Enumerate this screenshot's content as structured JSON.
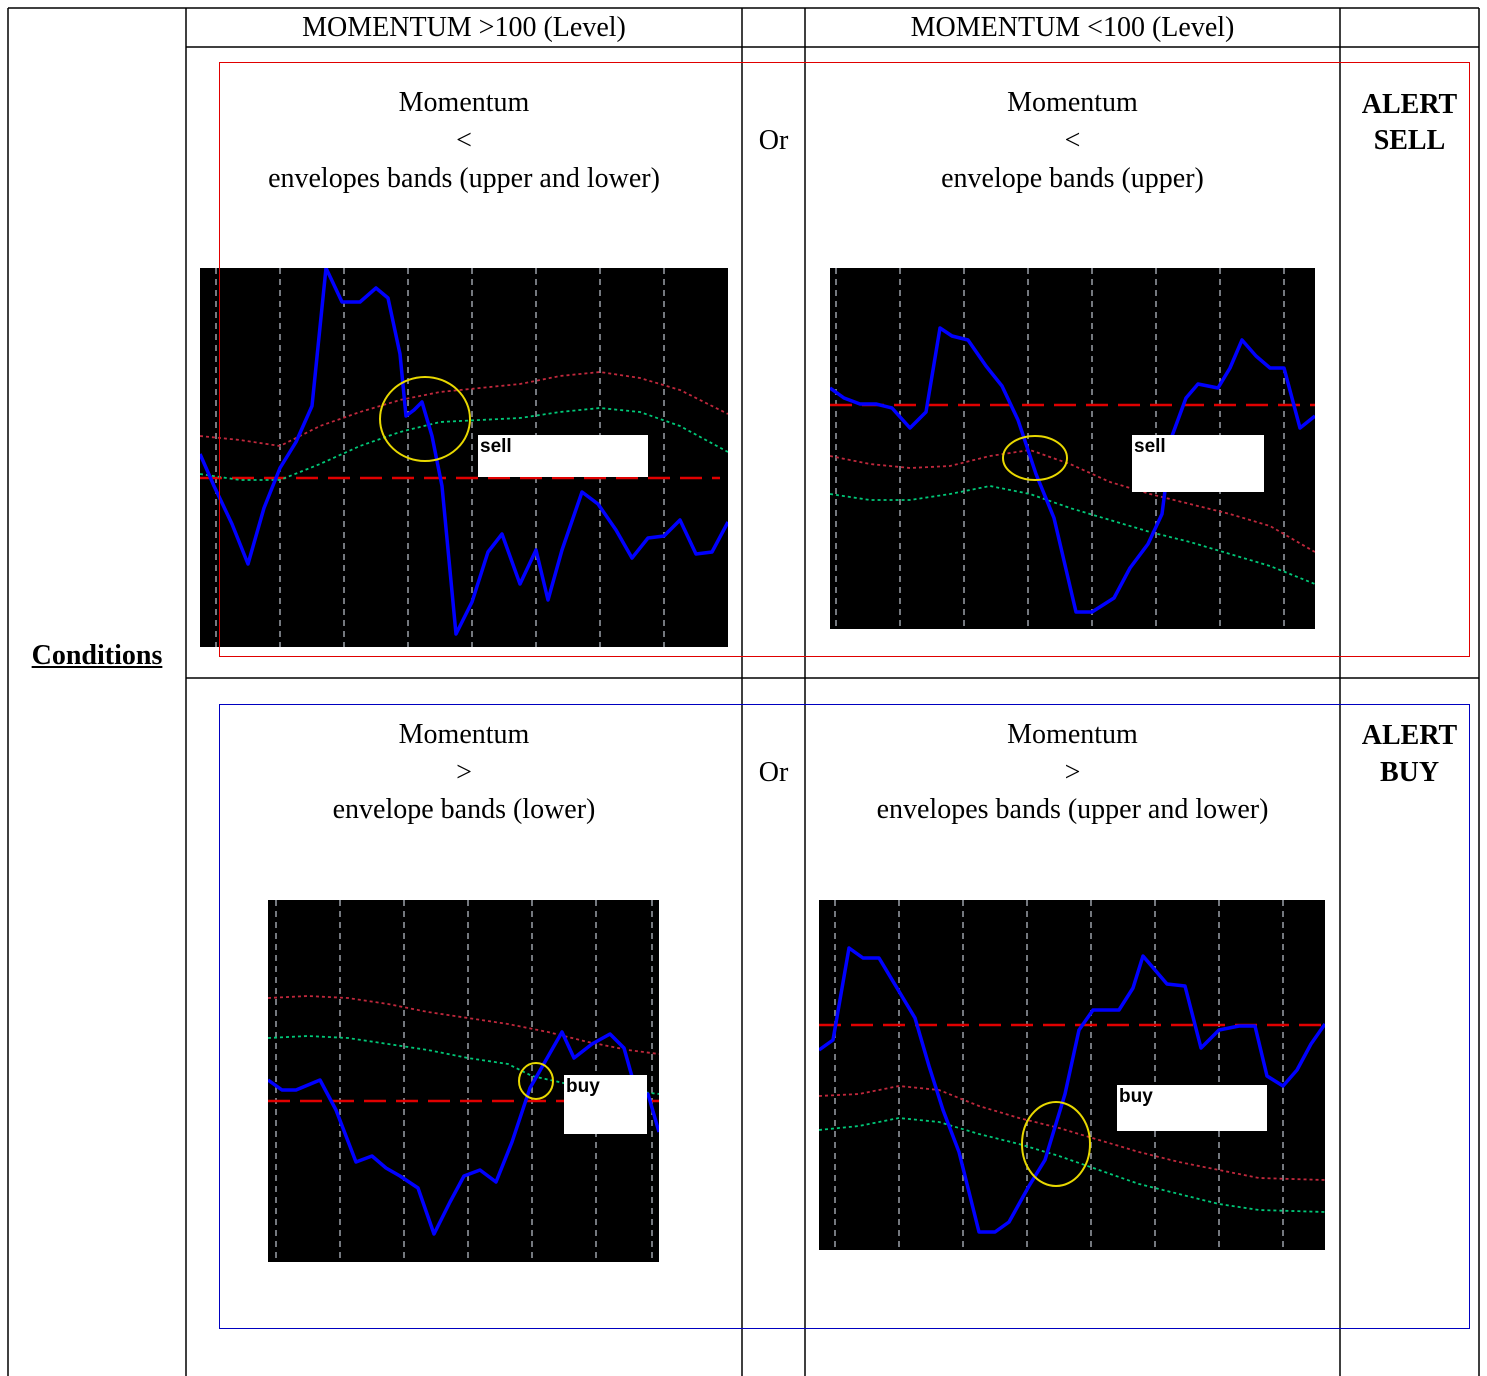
{
  "header": {
    "col_above": "MOMENTUM >100 (Level)",
    "col_below": "MOMENTUM <100 (Level)"
  },
  "row_label": "Conditions",
  "sell_row": {
    "left_lines": [
      "Momentum",
      "<",
      "envelopes bands (upper and lower)"
    ],
    "or": "Or",
    "right_lines": [
      "Momentum",
      "<",
      "envelope bands (upper)"
    ],
    "alert_lines": [
      "ALERT",
      "SELL"
    ],
    "left_popup": "sell",
    "right_popup": "sell"
  },
  "buy_row": {
    "left_lines": [
      "Momentum",
      ">",
      "envelope bands (lower)"
    ],
    "or": "Or",
    "right_lines": [
      "Momentum",
      ">",
      "envelopes bands (upper and lower)"
    ],
    "alert_lines": [
      "ALERT",
      "BUY"
    ],
    "left_popup": "buy",
    "right_popup": "buy"
  },
  "colors": {
    "momentum_line": "#0000ff",
    "upper_band": "#c0283c",
    "lower_band": "#00c878",
    "level_line": "#e00000",
    "highlight_circle": "#e8d800",
    "sell_frame": "#e00000",
    "buy_frame": "#0000c0"
  },
  "icons": {
    "highlight": "circle-highlight-icon"
  }
}
